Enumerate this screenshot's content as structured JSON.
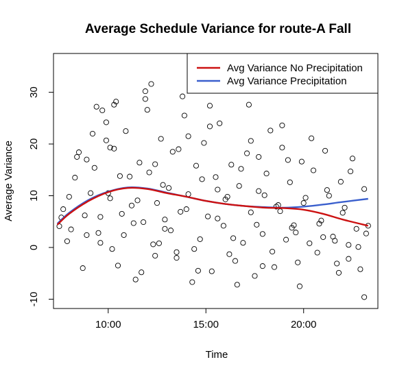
{
  "chart_data": {
    "type": "scatter",
    "title": "Average Schedule Variance for route-A Fall",
    "xlabel": "Time",
    "ylabel": "Average Variance",
    "x_ticks": [
      "10:00",
      "15:00",
      "20:00"
    ],
    "x_tick_hours": [
      10,
      15,
      20
    ],
    "y_ticks": [
      -10,
      0,
      10,
      20,
      30
    ],
    "xlim_hours": [
      7.2,
      23.8
    ],
    "ylim": [
      -11.8,
      37.5
    ],
    "grid": false,
    "legend_position": "top-right",
    "series": [
      {
        "name": "Avg Variance No Precipitation",
        "type": "line",
        "color": "#cc1111",
        "x_hours": [
          7.4,
          8,
          9,
          10,
          11,
          12,
          13,
          14,
          15,
          16,
          17,
          18,
          19,
          20,
          21,
          22,
          23.3
        ],
        "values": [
          4.4,
          6.5,
          9.0,
          10.7,
          11.5,
          11.3,
          10.5,
          9.8,
          9.0,
          8.4,
          8.0,
          7.7,
          7.6,
          7.3,
          6.5,
          5.4,
          4.2
        ]
      },
      {
        "name": "Avg Variance Precipitation",
        "type": "line",
        "color": "#3a5fcd",
        "x_hours": [
          7.4,
          8,
          9,
          10,
          11,
          12,
          13,
          14,
          15,
          16,
          17,
          18,
          19,
          20,
          21,
          22,
          23.3
        ],
        "values": [
          4.6,
          6.7,
          9.2,
          10.8,
          11.6,
          11.4,
          10.6,
          9.8,
          9.0,
          8.4,
          8.0,
          7.8,
          7.7,
          7.9,
          8.3,
          8.8,
          9.4
        ]
      },
      {
        "name": "",
        "type": "scatter",
        "x_hours": [
          7.5,
          7.7,
          7.9,
          8.1,
          8.3,
          8.5,
          8.7,
          8.9,
          9.1,
          9.3,
          9.5,
          9.7,
          9.9,
          10.1,
          10.3,
          10.5,
          10.7,
          10.9,
          11.1,
          11.3,
          11.5,
          11.7,
          11.9,
          12.1,
          12.3,
          12.5,
          12.7,
          12.9,
          13.1,
          13.3,
          13.5,
          13.7,
          13.9,
          14.1,
          14.3,
          14.5,
          14.7,
          14.9,
          15.1,
          15.3,
          15.5,
          15.7,
          15.9,
          16.1,
          16.3,
          16.5,
          16.7,
          16.9,
          17.1,
          17.3,
          17.5,
          17.7,
          17.9,
          18.1,
          18.3,
          18.5,
          18.7,
          18.9,
          19.1,
          19.3,
          19.5,
          19.7,
          19.9,
          20.1,
          20.3,
          20.5,
          20.7,
          20.9,
          21.1,
          21.3,
          21.5,
          21.7,
          21.9,
          22.1,
          22.3,
          22.5,
          22.7,
          22.9,
          23.1,
          23.3,
          7.6,
          8.0,
          8.4,
          8.8,
          9.2,
          9.6,
          10.0,
          10.4,
          10.8,
          11.2,
          11.6,
          12.0,
          12.4,
          12.8,
          13.2,
          13.6,
          14.0,
          14.4,
          14.8,
          15.2,
          15.6,
          16.0,
          16.4,
          16.8,
          17.2,
          17.6,
          18.0,
          18.4,
          18.8,
          19.2,
          19.6,
          20.0,
          20.4,
          20.8,
          21.2,
          21.6,
          22.0,
          22.4,
          22.8,
          23.2,
          9.4,
          9.9,
          10.3,
          10.6,
          11.9,
          12.2,
          12.4,
          12.9,
          13.8,
          14.1,
          15.2,
          15.6,
          17.3,
          17.7,
          18.6,
          18.9,
          9.6,
          10.1,
          11.4,
          13.5,
          16.6,
          19.4,
          21.0,
          22.3,
          8.9,
          10.2,
          11.8,
          12.6,
          14.6,
          16.2,
          17.9,
          19.8,
          21.8,
          23.1
        ],
        "values": [
          4.1,
          7.4,
          1.2,
          3.5,
          13.5,
          18.4,
          -4.0,
          17.0,
          10.5,
          15.4,
          2.8,
          26.5,
          20.7,
          9.5,
          27.6,
          -3.5,
          6.5,
          22.5,
          13.7,
          4.7,
          9.1,
          -4.8,
          30.2,
          14.5,
          0.6,
          8.6,
          21.0,
          3.6,
          11.5,
          18.5,
          -2.0,
          6.9,
          25.5,
          10.3,
          -6.7,
          15.8,
          1.6,
          20.2,
          6.0,
          -4.6,
          13.6,
          24.0,
          4.2,
          9.8,
          16.0,
          -2.6,
          11.9,
          0.9,
          18.2,
          6.8,
          -5.5,
          10.9,
          2.6,
          14.3,
          22.6,
          -3.8,
          8.2,
          19.3,
          1.5,
          12.6,
          4.3,
          -2.9,
          16.6,
          9.6,
          0.8,
          14.9,
          -1.0,
          5.2,
          18.7,
          10.0,
          2.1,
          -3.1,
          12.7,
          7.7,
          0.5,
          17.2,
          3.6,
          -4.2,
          11.3,
          4.2,
          5.8,
          9.8,
          17.5,
          6.2,
          22.0,
          0.9,
          10.5,
          28.2,
          2.4,
          8.1,
          16.4,
          26.6,
          -1.6,
          12.1,
          3.3,
          19.0,
          7.4,
          -0.3,
          13.2,
          23.4,
          5.6,
          9.3,
          1.8,
          15.2,
          27.6,
          4.4,
          10.1,
          -0.8,
          7.0,
          16.9,
          2.9,
          8.6,
          21.1,
          4.6,
          11.1,
          1.3,
          6.7,
          14.7,
          0.1,
          2.7,
          27.2,
          24.2,
          19.1,
          13.8,
          28.7,
          31.6,
          16.1,
          5.4,
          29.2,
          21.5,
          27.4,
          11.2,
          20.6,
          17.5,
          7.9,
          23.6,
          5.9,
          19.3,
          -6.2,
          -0.9,
          -7.2,
          3.8,
          2.0,
          -2.2,
          2.4,
          -0.3,
          4.9,
          0.8,
          -4.5,
          -1.3,
          -3.6,
          -7.5,
          -4.9,
          -9.6
        ]
      }
    ]
  }
}
